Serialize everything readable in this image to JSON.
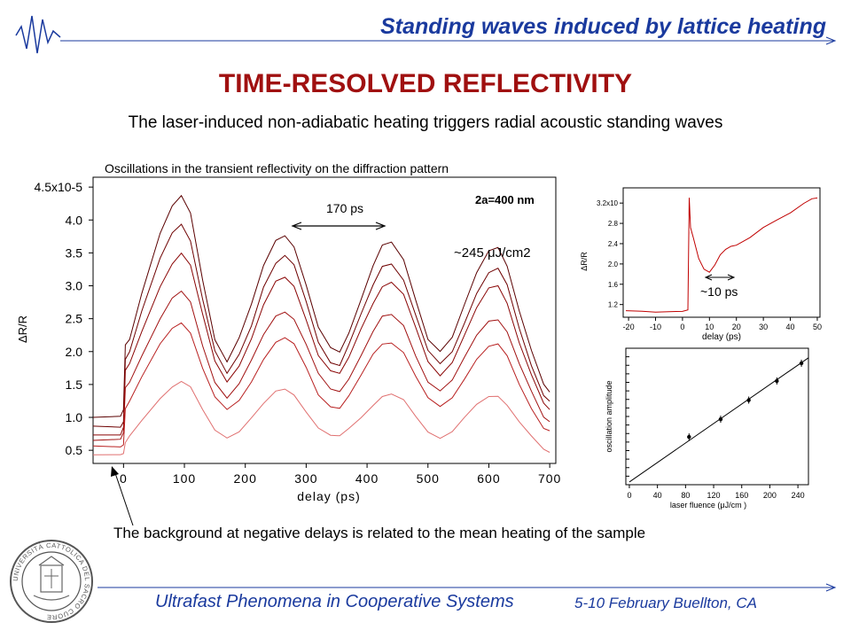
{
  "header": {
    "title": "Standing waves induced by lattice heating"
  },
  "slide": {
    "title": "TIME-RESOLVED REFLECTIVITY",
    "subtitle": "The laser-induced non-adiabatic heating triggers radial acoustic standing waves",
    "chart_caption": "Oscillations in the transient reflectivity on the diffraction pattern",
    "bottom_note": "The background at negative delays is related to the mean heating of the sample"
  },
  "footer": {
    "left": "Ultrafast Phenomena in Cooperative Systems",
    "right": "5-10 February Buellton, CA"
  },
  "logo": {
    "text": "UNIVERSITÀ CATTOLICA DEL SACRO CUORE"
  },
  "colors": {
    "brand_blue": "#1a3a9e",
    "title_red": "#a01010",
    "trace_dark": "#7a0000",
    "trace_light": "#e07070"
  },
  "chart_data": [
    {
      "type": "line",
      "xlabel": "delay (ps)",
      "ylabel": "ΔR/R",
      "xlim": [
        -50,
        710
      ],
      "ylim": [
        0.3,
        4.65
      ],
      "xticks": [
        "0",
        "100",
        "200",
        "300",
        "400",
        "500",
        "600",
        "700"
      ],
      "yticks": [
        "0.5",
        "1.0",
        "1.5",
        "2.0",
        "2.5",
        "3.0",
        "3.5",
        "4.0",
        "4.5x10-5"
      ],
      "ytick_values": [
        0.5,
        1.0,
        1.5,
        2.0,
        2.5,
        3.0,
        3.5,
        4.0,
        4.5
      ],
      "annotations": {
        "period": "170 ps",
        "size": "2a=400 nm",
        "fluence": "~245 μJ/cm2"
      },
      "x": [
        -50,
        -5,
        0,
        3,
        10,
        30,
        60,
        80,
        95,
        110,
        130,
        150,
        170,
        190,
        210,
        230,
        250,
        265,
        280,
        300,
        320,
        340,
        355,
        370,
        390,
        410,
        425,
        440,
        460,
        480,
        500,
        520,
        540,
        560,
        580,
        600,
        615,
        630,
        650,
        670,
        690,
        700
      ],
      "series": [
        {
          "values": [
            1.0,
            1.0,
            1.1,
            2.1,
            2.2,
            2.9,
            3.8,
            4.2,
            4.35,
            4.1,
            3.1,
            2.2,
            1.85,
            2.2,
            2.7,
            3.3,
            3.7,
            3.78,
            3.6,
            3.0,
            2.35,
            2.05,
            2.0,
            2.3,
            2.8,
            3.3,
            3.6,
            3.65,
            3.4,
            2.8,
            2.2,
            2.0,
            2.2,
            2.7,
            3.2,
            3.55,
            3.6,
            3.3,
            2.6,
            2.0,
            1.5,
            1.4
          ]
        },
        {
          "values": [
            0.85,
            0.85,
            0.95,
            1.9,
            2.0,
            2.6,
            3.4,
            3.8,
            3.95,
            3.7,
            2.8,
            2.0,
            1.65,
            1.95,
            2.4,
            3.0,
            3.35,
            3.45,
            3.3,
            2.75,
            2.15,
            1.85,
            1.8,
            2.1,
            2.55,
            3.0,
            3.3,
            3.35,
            3.1,
            2.55,
            2.0,
            1.8,
            2.0,
            2.45,
            2.9,
            3.2,
            3.25,
            3.0,
            2.35,
            1.8,
            1.35,
            1.25
          ]
        },
        {
          "values": [
            0.75,
            0.75,
            0.85,
            1.7,
            1.8,
            2.3,
            3.0,
            3.35,
            3.5,
            3.3,
            2.55,
            1.85,
            1.55,
            1.8,
            2.2,
            2.7,
            3.05,
            3.12,
            3.0,
            2.5,
            1.95,
            1.7,
            1.65,
            1.9,
            2.35,
            2.75,
            3.0,
            3.05,
            2.85,
            2.35,
            1.85,
            1.65,
            1.85,
            2.25,
            2.65,
            2.95,
            3.0,
            2.75,
            2.15,
            1.65,
            1.2,
            1.1
          ]
        },
        {
          "values": [
            0.65,
            0.65,
            0.75,
            1.45,
            1.55,
            1.95,
            2.5,
            2.8,
            2.9,
            2.75,
            2.1,
            1.55,
            1.3,
            1.5,
            1.85,
            2.25,
            2.55,
            2.62,
            2.5,
            2.1,
            1.65,
            1.42,
            1.4,
            1.6,
            1.95,
            2.3,
            2.52,
            2.55,
            2.4,
            1.95,
            1.55,
            1.4,
            1.55,
            1.9,
            2.25,
            2.48,
            2.5,
            2.3,
            1.8,
            1.38,
            1.0,
            0.95
          ]
        },
        {
          "values": [
            0.55,
            0.55,
            0.6,
            1.15,
            1.25,
            1.6,
            2.1,
            2.35,
            2.45,
            2.3,
            1.75,
            1.3,
            1.1,
            1.25,
            1.55,
            1.9,
            2.15,
            2.2,
            2.1,
            1.75,
            1.35,
            1.18,
            1.15,
            1.32,
            1.62,
            1.95,
            2.12,
            2.15,
            2.0,
            1.62,
            1.28,
            1.15,
            1.3,
            1.6,
            1.9,
            2.08,
            2.1,
            1.92,
            1.5,
            1.15,
            0.85,
            0.8
          ]
        },
        {
          "values": [
            0.45,
            0.45,
            0.45,
            0.6,
            0.7,
            0.95,
            1.3,
            1.48,
            1.55,
            1.45,
            1.1,
            0.8,
            0.7,
            0.8,
            1.0,
            1.2,
            1.38,
            1.42,
            1.35,
            1.1,
            0.85,
            0.72,
            0.7,
            0.82,
            1.0,
            1.2,
            1.33,
            1.35,
            1.25,
            1.0,
            0.78,
            0.7,
            0.8,
            1.0,
            1.18,
            1.3,
            1.32,
            1.2,
            0.95,
            0.72,
            0.5,
            0.45
          ]
        }
      ]
    },
    {
      "type": "line",
      "xlabel": "delay (ps)",
      "ylabel": "ΔR/R",
      "xlim": [
        -22,
        51
      ],
      "ylim": [
        0.95,
        3.5
      ],
      "xticks": [
        "-20",
        "-10",
        "0",
        "10",
        "20",
        "30",
        "40",
        "50"
      ],
      "yticks": [
        "1.2",
        "1.6",
        "2.0",
        "2.4",
        "2.8",
        "3.2x10"
      ],
      "ytick_values": [
        1.2,
        1.6,
        2.0,
        2.4,
        2.8,
        3.2
      ],
      "annotations": {
        "period": "~10 ps"
      },
      "x": [
        -21,
        -15,
        -10,
        -5,
        0,
        2,
        2.5,
        3,
        4,
        5,
        6,
        8,
        10,
        12,
        14,
        16,
        18,
        20,
        25,
        30,
        35,
        40,
        45,
        48,
        50
      ],
      "series": [
        {
          "values": [
            1.08,
            1.08,
            1.07,
            1.08,
            1.08,
            1.1,
            3.3,
            2.7,
            2.5,
            2.3,
            2.1,
            1.9,
            1.85,
            2.0,
            2.2,
            2.3,
            2.35,
            2.36,
            2.5,
            2.7,
            2.85,
            3.0,
            3.2,
            3.3,
            3.32
          ]
        }
      ]
    },
    {
      "type": "scatter",
      "xlabel": "laser fluence (μJ/cm )",
      "ylabel": "oscillation amplitude",
      "xlim": [
        -5,
        255
      ],
      "ylim": [
        0,
        1
      ],
      "xticks": [
        "0",
        "40",
        "80",
        "120",
        "160",
        "200",
        "240"
      ],
      "x": [
        85,
        130,
        170,
        210,
        245
      ],
      "series": [
        {
          "values": [
            0.35,
            0.48,
            0.62,
            0.76,
            0.89
          ]
        }
      ],
      "fit_line": [
        0,
        0.02,
        255,
        0.93
      ]
    }
  ]
}
